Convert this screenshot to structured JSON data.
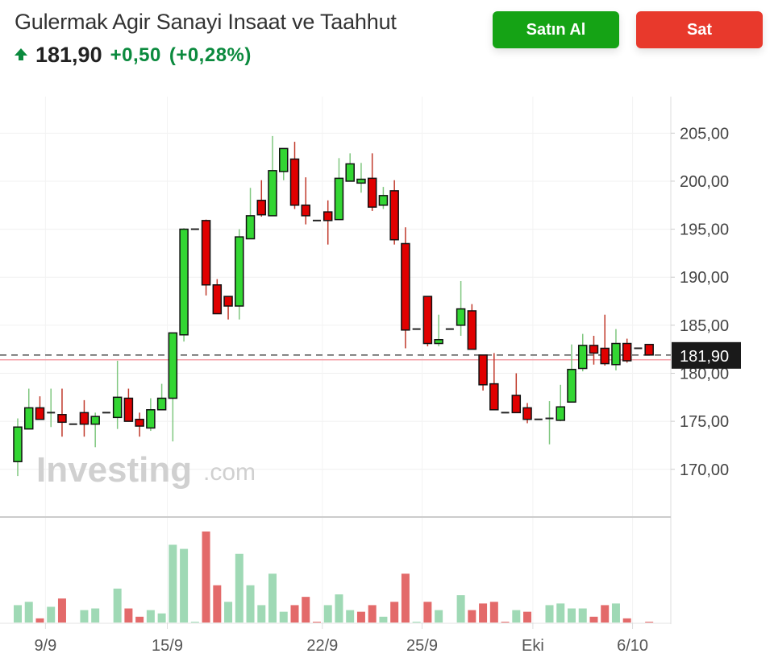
{
  "header": {
    "title": "Gulermak Agir Sanayi Insaat ve Taahhut",
    "price": "181,90",
    "change": "+0,50",
    "change_pct": "(+0,28%)",
    "direction_icon": "arrow-up-icon",
    "buy_label": "Satın Al",
    "sell_label": "Sat"
  },
  "colors": {
    "up": "#33d633",
    "down": "#e00000",
    "vol_up": "#9fd9b5",
    "vol_down": "#e36a6a",
    "buy": "#15a315",
    "sell": "#e8392c",
    "change": "#0b8a3e"
  },
  "watermark": {
    "brand": "Investing",
    "suffix": ".com"
  },
  "chart_data": {
    "type": "candlestick",
    "ylim": [
      165.2,
      208.8
    ],
    "grid": true,
    "y_ticks": [
      {
        "value": 205,
        "label": "205,00"
      },
      {
        "value": 200,
        "label": "200,00"
      },
      {
        "value": 195,
        "label": "195,00"
      },
      {
        "value": 190,
        "label": "190,00"
      },
      {
        "value": 185,
        "label": "185,00"
      },
      {
        "value": 180,
        "label": "180,00"
      },
      {
        "value": 175,
        "label": "175,00"
      },
      {
        "value": 170,
        "label": "170,00"
      }
    ],
    "x_ticks": [
      {
        "index": 2.5,
        "label": "9/9"
      },
      {
        "index": 13.5,
        "label": "15/9"
      },
      {
        "index": 27.5,
        "label": "22/9"
      },
      {
        "index": 36.5,
        "label": "25/9"
      },
      {
        "index": 46.5,
        "label": "Eki"
      },
      {
        "index": 55.5,
        "label": "6/10"
      }
    ],
    "last_price": {
      "value": 181.9,
      "label": "181,90"
    },
    "previous_close": 181.4,
    "ohlc": [
      [
        170.8,
        175.3,
        169.3,
        174.4
      ],
      [
        174.2,
        178.4,
        174.2,
        176.4
      ],
      [
        176.4,
        177.6,
        175.2,
        175.2
      ],
      [
        175.9,
        178.4,
        174.4,
        175.9
      ],
      [
        175.7,
        178.4,
        173.4,
        174.9
      ],
      [
        174.7,
        174.7,
        174.7,
        174.7
      ],
      [
        175.9,
        177.2,
        173.4,
        174.7
      ],
      [
        174.7,
        175.9,
        172.3,
        175.5
      ],
      [
        175.9,
        175.9,
        175.9,
        175.9
      ],
      [
        175.4,
        181.3,
        174.2,
        177.5
      ],
      [
        177.4,
        178.4,
        175.0,
        175.0
      ],
      [
        175.2,
        175.9,
        173.4,
        174.5
      ],
      [
        174.3,
        177.4,
        174.0,
        176.2
      ],
      [
        176.2,
        178.9,
        176.2,
        177.4
      ],
      [
        177.4,
        184.2,
        172.9,
        184.2
      ],
      [
        184.0,
        195.1,
        183.3,
        195.0
      ],
      [
        195.0,
        195.0,
        195.0,
        195.0
      ],
      [
        195.9,
        196.0,
        188.1,
        189.2
      ],
      [
        189.2,
        189.8,
        186.2,
        186.2
      ],
      [
        188.0,
        188.0,
        185.6,
        187.0
      ],
      [
        187.0,
        195.0,
        185.6,
        194.2
      ],
      [
        194.0,
        199.3,
        194.0,
        196.4
      ],
      [
        198.0,
        200.1,
        196.3,
        196.5
      ],
      [
        196.4,
        204.7,
        196.4,
        201.1
      ],
      [
        201.0,
        203.4,
        200.1,
        203.4
      ],
      [
        202.3,
        204.1,
        197.1,
        197.5
      ],
      [
        197.5,
        200.4,
        195.5,
        196.4
      ],
      [
        195.9,
        195.9,
        195.9,
        195.9
      ],
      [
        196.8,
        198.0,
        193.4,
        195.9
      ],
      [
        196.0,
        202.4,
        196.0,
        200.3
      ],
      [
        200.0,
        202.9,
        200.0,
        201.8
      ],
      [
        199.8,
        201.9,
        198.8,
        200.2
      ],
      [
        200.3,
        202.9,
        196.9,
        197.3
      ],
      [
        197.5,
        199.4,
        197.1,
        198.5
      ],
      [
        199.0,
        200.1,
        193.4,
        193.9
      ],
      [
        193.5,
        195.2,
        182.6,
        184.5
      ],
      [
        184.6,
        184.6,
        184.6,
        184.6
      ],
      [
        188.0,
        188.0,
        182.8,
        183.1
      ],
      [
        183.1,
        186.1,
        182.8,
        183.5
      ],
      [
        184.6,
        184.6,
        184.6,
        184.6
      ],
      [
        185.0,
        189.6,
        183.9,
        186.7
      ],
      [
        186.5,
        187.2,
        182.5,
        182.5
      ],
      [
        181.9,
        181.9,
        178.2,
        178.8
      ],
      [
        178.9,
        182.1,
        176.2,
        176.2
      ],
      [
        175.9,
        175.9,
        175.9,
        175.9
      ],
      [
        177.7,
        180.0,
        175.9,
        175.9
      ],
      [
        176.4,
        176.9,
        174.8,
        175.2
      ],
      [
        175.2,
        175.2,
        175.2,
        175.2
      ],
      [
        175.3,
        177.1,
        172.6,
        175.3
      ],
      [
        175.1,
        178.8,
        175.0,
        176.5
      ],
      [
        177.0,
        183.0,
        177.0,
        180.4
      ],
      [
        180.5,
        184.1,
        180.2,
        182.9
      ],
      [
        182.9,
        183.9,
        180.9,
        182.1
      ],
      [
        182.6,
        186.1,
        180.8,
        181.0
      ],
      [
        180.9,
        184.6,
        180.3,
        183.1
      ],
      [
        183.1,
        183.6,
        181.1,
        181.3
      ],
      [
        182.6,
        182.6,
        182.6,
        182.6
      ],
      [
        183.0,
        183.0,
        181.9,
        181.9
      ]
    ],
    "volume_relative": [
      21,
      25,
      5,
      19,
      29,
      0,
      15,
      17,
      0,
      41,
      17,
      7,
      15,
      11,
      94,
      89,
      1,
      110,
      45,
      25,
      83,
      45,
      21,
      59,
      13,
      21,
      31,
      1,
      21,
      34,
      15,
      13,
      21,
      7,
      25,
      59,
      1,
      25,
      15,
      0,
      33,
      15,
      23,
      25,
      1,
      15,
      13,
      0,
      21,
      23,
      17,
      17,
      7,
      21,
      23,
      5,
      0,
      1
    ],
    "volume_direction": [
      "up",
      "up",
      "down",
      "up",
      "down",
      "up",
      "up",
      "up",
      "up",
      "up",
      "down",
      "down",
      "up",
      "up",
      "up",
      "up",
      "up",
      "down",
      "down",
      "up",
      "up",
      "up",
      "up",
      "up",
      "up",
      "down",
      "down",
      "down",
      "up",
      "up",
      "up",
      "down",
      "down",
      "up",
      "down",
      "down",
      "up",
      "down",
      "up",
      "up",
      "up",
      "down",
      "down",
      "down",
      "down",
      "up",
      "down",
      "up",
      "up",
      "up",
      "up",
      "up",
      "down",
      "down",
      "up",
      "down",
      "up",
      "down"
    ]
  }
}
